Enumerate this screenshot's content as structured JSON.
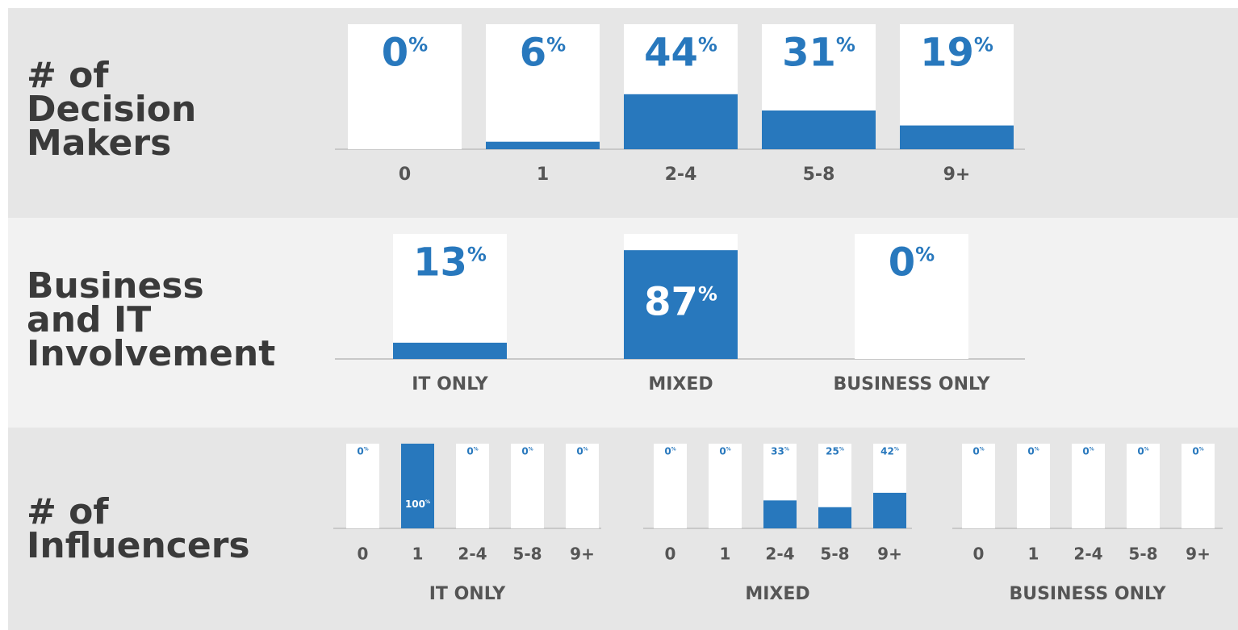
{
  "chart_data": [
    {
      "type": "bar",
      "title": "# of Decision Makers",
      "ylim": [
        0,
        100
      ],
      "color": "#2878bd",
      "panels": [
        {
          "categories": [
            "0",
            "1",
            "2-4",
            "5-8",
            "9+"
          ],
          "values": [
            0,
            6,
            44,
            31,
            19
          ],
          "value_labels": [
            "0%",
            "6%",
            "44%",
            "31%",
            "19%"
          ]
        }
      ]
    },
    {
      "type": "bar",
      "title": "Business and IT Involvement",
      "ylim": [
        0,
        100
      ],
      "color": "#2878bd",
      "panels": [
        {
          "categories": [
            "IT ONLY",
            "MIXED",
            "BUSINESS ONLY"
          ],
          "values": [
            13,
            87,
            0
          ],
          "value_labels": [
            "13%",
            "87%",
            "0%"
          ]
        }
      ]
    },
    {
      "type": "bar",
      "title": "# of Influencers",
      "ylim": [
        0,
        100
      ],
      "color": "#2878bd",
      "panels": [
        {
          "label": "IT ONLY",
          "categories": [
            "0",
            "1",
            "2-4",
            "5-8",
            "9+"
          ],
          "values": [
            0,
            100,
            0,
            0,
            0
          ],
          "value_labels": [
            "0%",
            "100%",
            "0%",
            "0%",
            "0%"
          ]
        },
        {
          "label": "MIXED",
          "categories": [
            "0",
            "1",
            "2-4",
            "5-8",
            "9+"
          ],
          "values": [
            0,
            0,
            33,
            25,
            42
          ],
          "value_labels": [
            "0%",
            "0%",
            "33%",
            "25%",
            "42%"
          ]
        },
        {
          "label": "BUSINESS ONLY",
          "categories": [
            "0",
            "1",
            "2-4",
            "5-8",
            "9+"
          ],
          "values": [
            0,
            0,
            0,
            0,
            0
          ],
          "value_labels": [
            "0%",
            "0%",
            "0%",
            "0%",
            "0%"
          ]
        }
      ]
    }
  ]
}
